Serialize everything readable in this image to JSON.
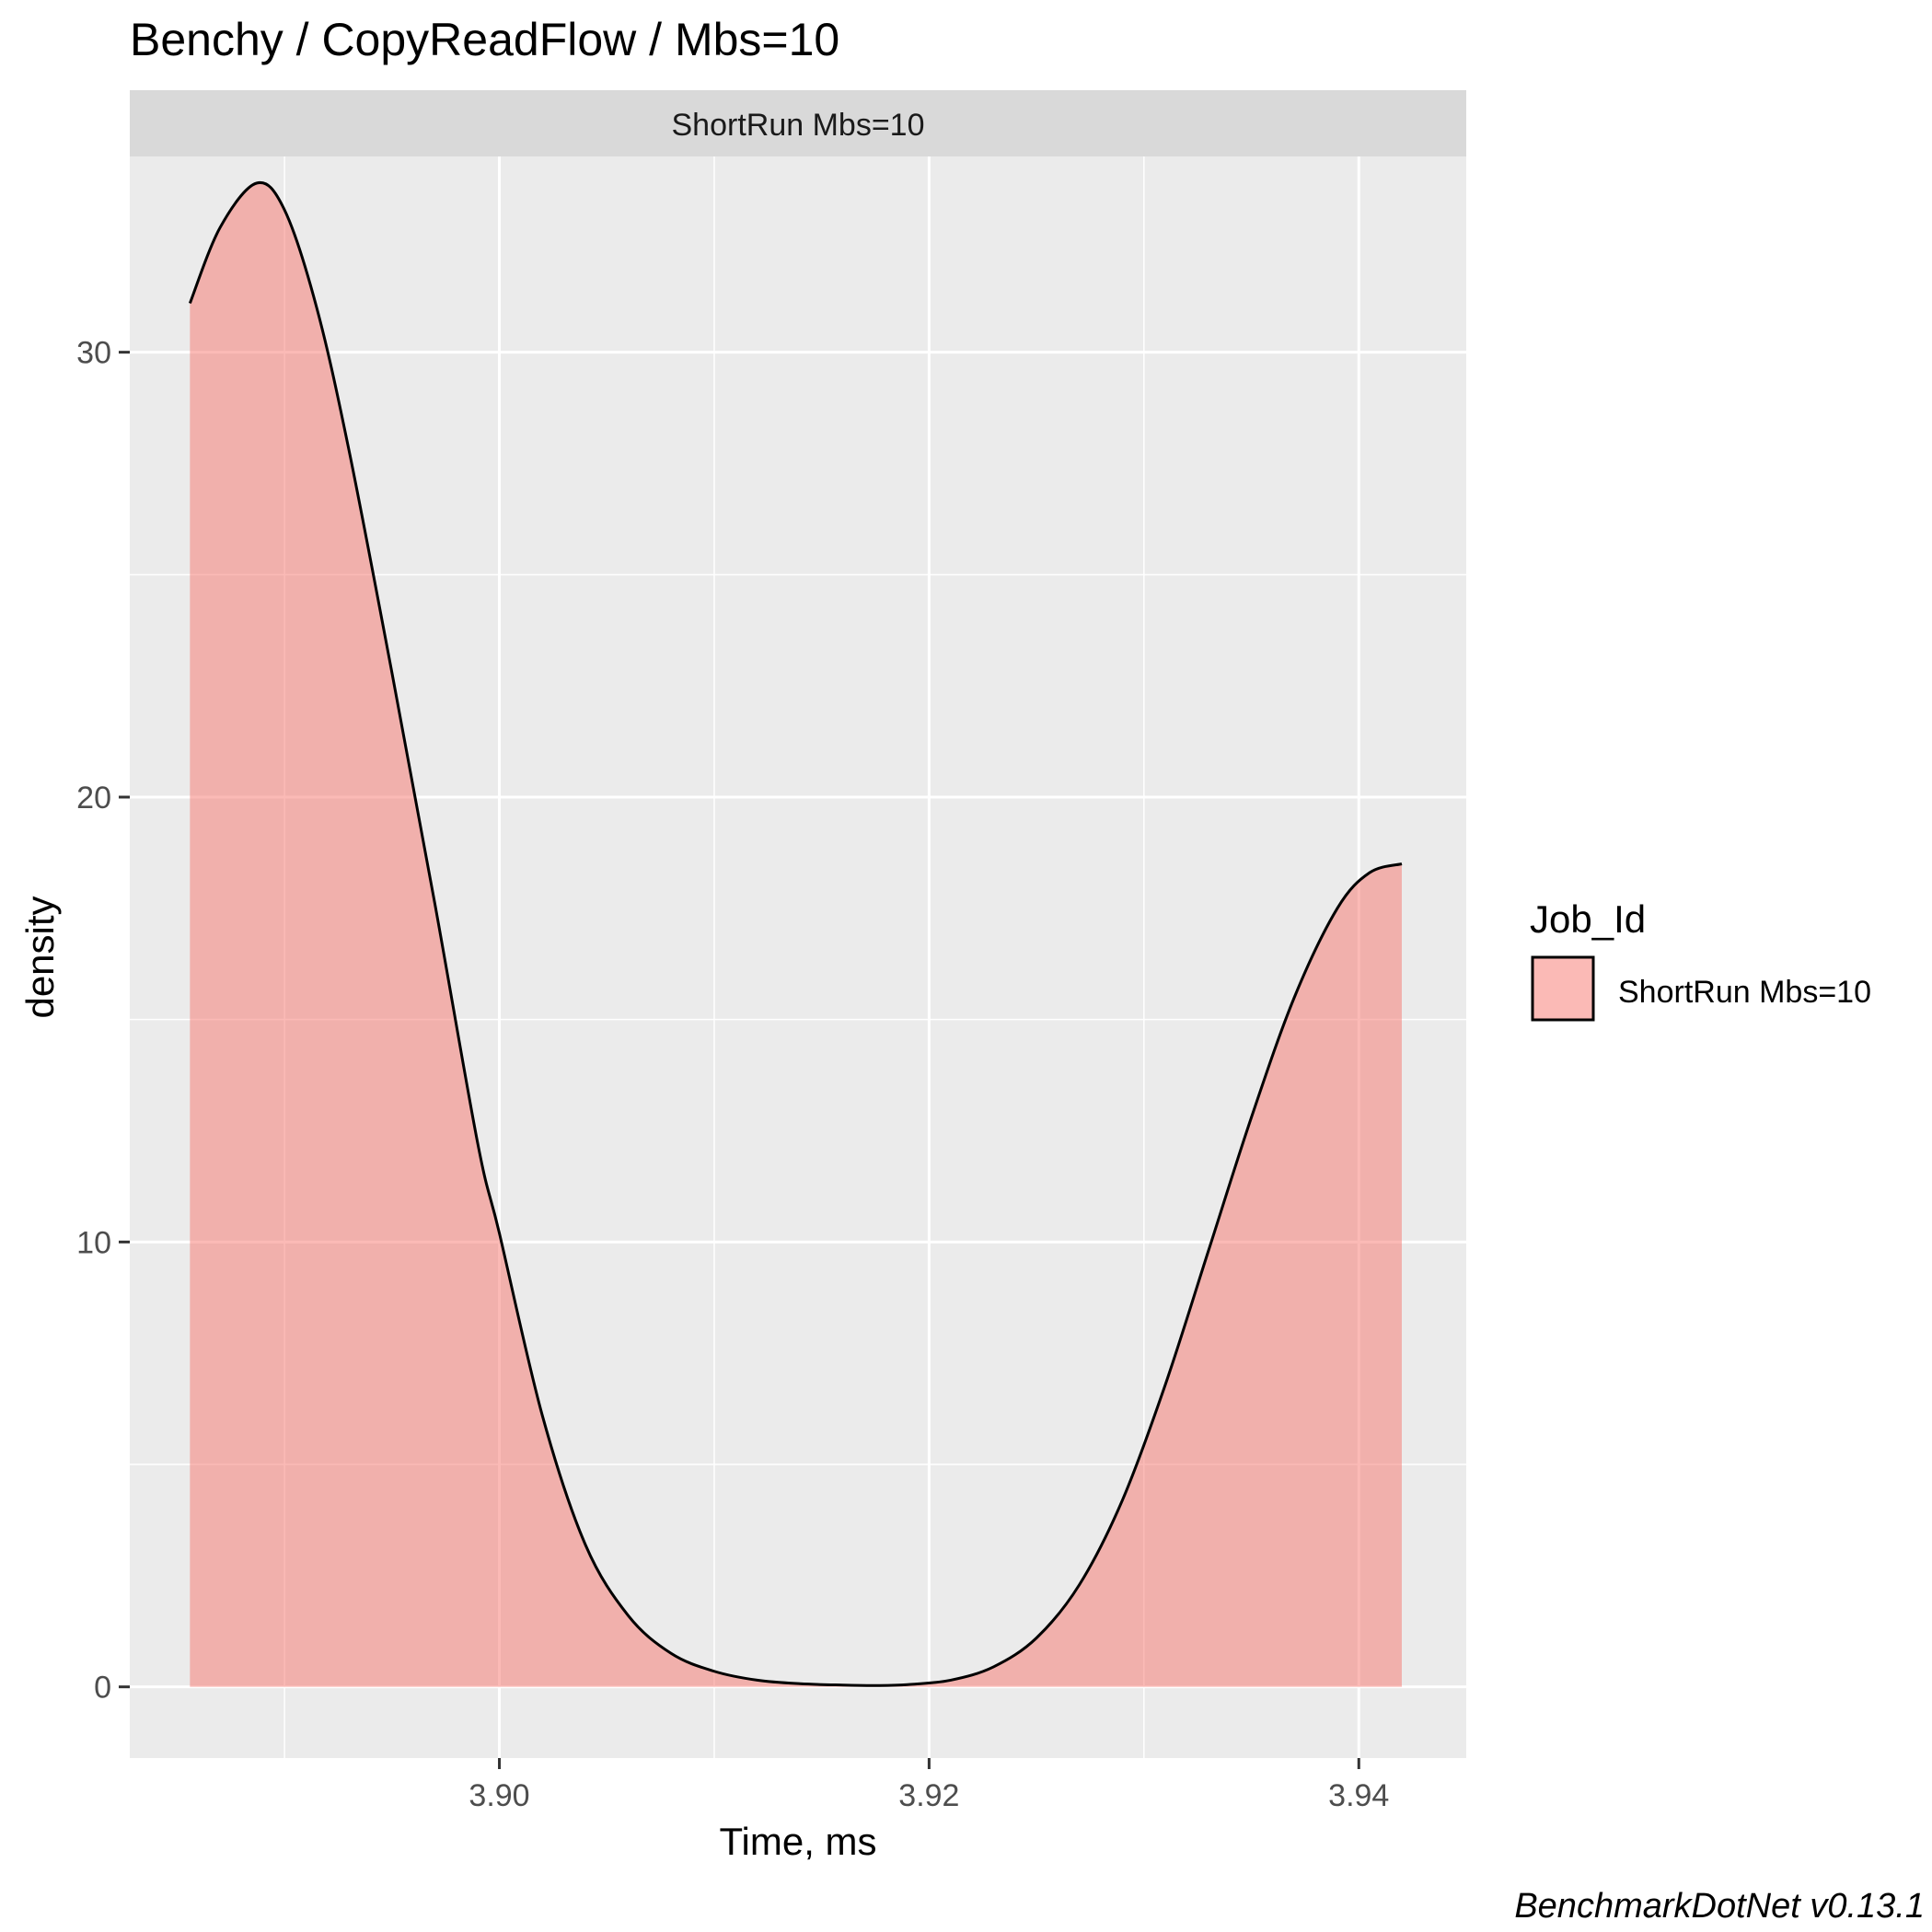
{
  "chart_data": {
    "type": "area",
    "title": "Benchy / CopyReadFlow / Mbs=10",
    "facet_label": "ShortRun Mbs=10",
    "xlabel": "Time, ms",
    "ylabel": "density",
    "xlim": [
      3.8828,
      3.945
    ],
    "ylim": [
      -1.6,
      34.4
    ],
    "x_ticks": [
      3.9,
      3.92,
      3.94
    ],
    "x_tick_labels": [
      "3.90",
      "3.92",
      "3.94"
    ],
    "x_minor_ticks": [
      3.89,
      3.91,
      3.93
    ],
    "y_ticks": [
      0,
      10,
      20,
      30
    ],
    "y_tick_labels": [
      "0",
      "10",
      "20",
      "30"
    ],
    "y_minor_ticks": [
      5,
      15,
      25
    ],
    "grid": true,
    "legend": {
      "title": "Job_Id",
      "position": "right",
      "entries": [
        {
          "label": "ShortRun Mbs=10",
          "color": "#F8766D"
        }
      ]
    },
    "series": [
      {
        "name": "ShortRun Mbs=10",
        "fill": "#F8766D",
        "fill_opacity": 0.5,
        "line_color": "#000000",
        "x": [
          3.8856,
          3.887,
          3.8887,
          3.89,
          3.8915,
          3.893,
          3.895,
          3.897,
          3.899,
          3.9,
          3.902,
          3.904,
          3.906,
          3.908,
          3.91,
          3.912,
          3.914,
          3.916,
          3.9175,
          3.919,
          3.921,
          3.923,
          3.925,
          3.927,
          3.929,
          3.931,
          3.933,
          3.935,
          3.937,
          3.939,
          3.9405,
          3.942
        ],
        "y": [
          31.1,
          32.8,
          33.8,
          33.2,
          31.0,
          27.8,
          22.8,
          17.6,
          12.2,
          10.2,
          6.1,
          3.2,
          1.6,
          0.75,
          0.35,
          0.15,
          0.07,
          0.04,
          0.03,
          0.05,
          0.15,
          0.45,
          1.1,
          2.3,
          4.2,
          6.8,
          9.8,
          12.8,
          15.5,
          17.5,
          18.3,
          18.5
        ]
      }
    ]
  },
  "caption": "BenchmarkDotNet v0.13.1"
}
